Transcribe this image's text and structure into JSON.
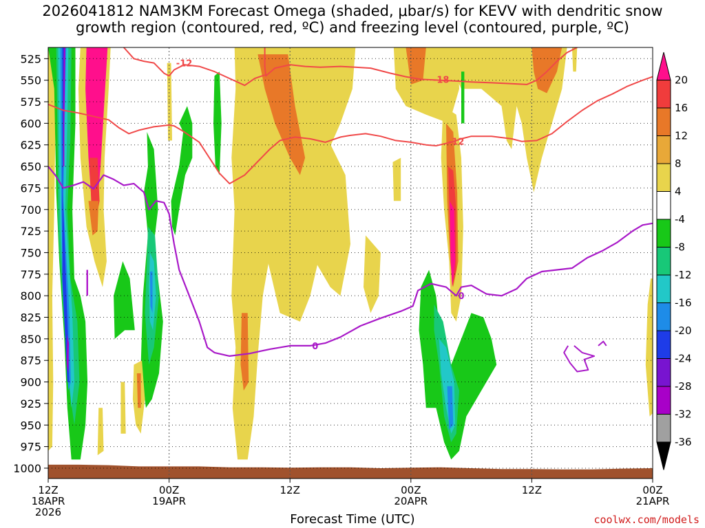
{
  "chart_data": {
    "type": "heatmap",
    "title_line1": "2026041812 NAM3KM Forecast Omega (shaded, μbar/s) for KEVV with dendritic snow",
    "title_line2": "growth region (contoured, red, ºC) and freezing level (contoured, purple, ºC)",
    "xlabel": "Forecast Time (UTC)",
    "credit": "coolwx.com/models",
    "y_levels": [
      525,
      550,
      575,
      600,
      625,
      650,
      675,
      700,
      725,
      750,
      775,
      800,
      825,
      850,
      875,
      900,
      925,
      950,
      975,
      1000
    ],
    "ylim": [
      512,
      1012
    ],
    "xlim_hours": [
      0,
      60
    ],
    "x_ticks": [
      {
        "hours": 0,
        "line1": "12Z",
        "line2": "18APR",
        "line3": "2026"
      },
      {
        "hours": 12,
        "line1": "00Z",
        "line2": "19APR",
        "line3": ""
      },
      {
        "hours": 24,
        "line1": "12Z",
        "line2": "",
        "line3": ""
      },
      {
        "hours": 36,
        "line1": "00Z",
        "line2": "20APR",
        "line3": ""
      },
      {
        "hours": 48,
        "line1": "12Z",
        "line2": "",
        "line3": ""
      },
      {
        "hours": 60,
        "line1": "00Z",
        "line2": "21APR",
        "line3": ""
      }
    ],
    "colorbar": {
      "levels": [
        20,
        16,
        12,
        8,
        4,
        -4,
        -8,
        -12,
        -16,
        -20,
        -24,
        -28,
        -32,
        -36
      ],
      "colors": [
        "#ff0f8c",
        "#f03c3c",
        "#e87828",
        "#e8a838",
        "#e8d44c",
        "#ffffff",
        "#18c818",
        "#18c878",
        "#22c8c8",
        "#1e8ce8",
        "#1e3ce8",
        "#7814d0",
        "#a800c8",
        "#a0a0a0",
        "#000000"
      ]
    },
    "freezing_level_0C": {
      "name": "freezing level",
      "value": "0",
      "color": "#a818c8",
      "points": [
        [
          0,
          650
        ],
        [
          0.7,
          660
        ],
        [
          1.5,
          675
        ],
        [
          2.5,
          672
        ],
        [
          3.5,
          668
        ],
        [
          4.5,
          676
        ],
        [
          5.5,
          660
        ],
        [
          6.5,
          665
        ],
        [
          7.5,
          672
        ],
        [
          8.5,
          670
        ],
        [
          9.5,
          680
        ],
        [
          10,
          700
        ],
        [
          10.7,
          690
        ],
        [
          11.5,
          692
        ],
        [
          12,
          705
        ],
        [
          12.5,
          740
        ],
        [
          13,
          770
        ],
        [
          14,
          800
        ],
        [
          15,
          830
        ],
        [
          15.8,
          860
        ],
        [
          16.5,
          866
        ],
        [
          18,
          870
        ],
        [
          20,
          867
        ],
        [
          22,
          862
        ],
        [
          24,
          858
        ],
        [
          26,
          858
        ],
        [
          27.5,
          855
        ],
        [
          29,
          848
        ],
        [
          31,
          835
        ],
        [
          33,
          826
        ],
        [
          35,
          818
        ],
        [
          36.2,
          812
        ],
        [
          36.7,
          794
        ],
        [
          38,
          786
        ],
        [
          39.5,
          790
        ],
        [
          40.5,
          800
        ],
        [
          41,
          790
        ],
        [
          42,
          788
        ],
        [
          43.5,
          798
        ],
        [
          45,
          800
        ],
        [
          46.5,
          792
        ],
        [
          47.5,
          780
        ],
        [
          49,
          772
        ],
        [
          50.5,
          770
        ],
        [
          52,
          768
        ],
        [
          53.5,
          756
        ],
        [
          55,
          748
        ],
        [
          56.5,
          738
        ],
        [
          58,
          725
        ],
        [
          59,
          718
        ],
        [
          60,
          716
        ]
      ]
    },
    "freezing_level_small": [
      [
        [
          51.6,
          858
        ],
        [
          51.2,
          866
        ],
        [
          51.8,
          878
        ],
        [
          52.5,
          888
        ],
        [
          53.6,
          886
        ],
        [
          53.2,
          874
        ],
        [
          54.2,
          870
        ],
        [
          53,
          866
        ],
        [
          52.2,
          858
        ]
      ],
      [
        [
          54.6,
          858
        ],
        [
          55.1,
          853
        ],
        [
          55.4,
          858
        ]
      ]
    ],
    "isotherm_minus12": {
      "name": "-12 C isotherm",
      "value": "-12",
      "color": "#f04848",
      "points": [
        [
          0,
          578
        ],
        [
          1.5,
          585
        ],
        [
          3,
          588
        ],
        [
          4.5,
          592
        ],
        [
          6,
          596
        ],
        [
          7,
          605
        ],
        [
          8,
          612
        ],
        [
          9,
          608
        ],
        [
          10.5,
          604
        ],
        [
          12,
          602
        ],
        [
          12.5,
          603
        ],
        [
          13.5,
          610
        ],
        [
          15,
          622
        ],
        [
          16,
          640
        ],
        [
          17,
          658
        ],
        [
          18,
          670
        ],
        [
          19.5,
          660
        ],
        [
          21,
          642
        ],
        [
          22,
          630
        ],
        [
          23,
          620
        ],
        [
          24.5,
          616
        ],
        [
          26,
          618
        ],
        [
          27.5,
          622
        ],
        [
          29,
          616
        ],
        [
          30,
          614
        ],
        [
          31.5,
          612
        ],
        [
          33,
          615
        ],
        [
          34.5,
          620
        ],
        [
          36,
          622
        ],
        [
          37.5,
          625
        ],
        [
          38.5,
          626
        ],
        [
          40,
          622
        ],
        [
          41,
          618
        ],
        [
          42,
          615
        ],
        [
          44,
          615
        ],
        [
          46,
          618
        ],
        [
          47,
          621
        ],
        [
          48.5,
          620
        ],
        [
          50,
          612
        ],
        [
          51.5,
          598
        ],
        [
          53,
          585
        ],
        [
          54.5,
          574
        ],
        [
          56,
          566
        ],
        [
          57.5,
          557
        ],
        [
          59,
          550
        ],
        [
          60,
          546
        ]
      ]
    },
    "isotherm_minus12_upper": {
      "points": [
        [
          7.5,
          512
        ],
        [
          8.5,
          525
        ],
        [
          9.5,
          528
        ],
        [
          10.5,
          530
        ],
        [
          11.5,
          542
        ],
        [
          12,
          545
        ],
        [
          12.5,
          538
        ],
        [
          13.5,
          532
        ],
        [
          15,
          534
        ],
        [
          16.5,
          540
        ],
        [
          18,
          548
        ],
        [
          19.5,
          556
        ],
        [
          20.5,
          548
        ],
        [
          21.5,
          544
        ]
      ],
      "label_at": [
        13.5,
        530
      ]
    },
    "isotherm_minus18": {
      "name": "-18 C isotherm",
      "value": "-18",
      "color": "#f04848",
      "points": [
        [
          21.5,
          512
        ],
        [
          21.5,
          534
        ],
        [
          21.6,
          545
        ],
        [
          22.5,
          536
        ],
        [
          24,
          532
        ],
        [
          25.5,
          534
        ],
        [
          27,
          535
        ],
        [
          29,
          534
        ],
        [
          30.5,
          535
        ],
        [
          32,
          536
        ],
        [
          34,
          542
        ],
        [
          35.5,
          546
        ],
        [
          37,
          549
        ],
        [
          39,
          550
        ],
        [
          40.5,
          551
        ],
        [
          42,
          552
        ],
        [
          44,
          553
        ],
        [
          46,
          554
        ],
        [
          47.5,
          555
        ],
        [
          48.5,
          550
        ],
        [
          49.5,
          540
        ],
        [
          50.5,
          528
        ],
        [
          51.5,
          518
        ],
        [
          52.5,
          512
        ]
      ],
      "label_at": [
        39,
        549
      ]
    },
    "freezing_label_at": [
      26.5,
      858
    ],
    "freezing_label2_at": [
      41,
      800
    ],
    "minus12_label_at": [
      40.5,
      621
    ],
    "surface_pressure": [
      [
        0,
        996
      ],
      [
        3,
        996
      ],
      [
        6,
        996.5
      ],
      [
        9,
        998
      ],
      [
        12,
        998
      ],
      [
        15,
        998
      ],
      [
        18,
        999
      ],
      [
        21,
        999
      ],
      [
        24,
        999.5
      ],
      [
        27,
        999
      ],
      [
        30,
        999
      ],
      [
        33,
        1000
      ],
      [
        36,
        999.5
      ],
      [
        39,
        999
      ],
      [
        42,
        1000
      ],
      [
        45,
        1001
      ],
      [
        48,
        1001
      ],
      [
        51,
        1001.5
      ],
      [
        54,
        1001.5
      ],
      [
        57,
        1000.5
      ],
      [
        60,
        1000
      ]
    ]
  }
}
